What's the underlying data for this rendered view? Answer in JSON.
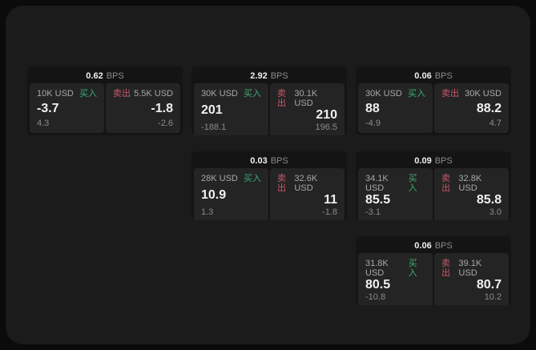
{
  "colors": {
    "page_bg": "#0b0b0b",
    "panel_bg": "#1b1b1b",
    "card_bg": "#141414",
    "tile_bg": "#242424",
    "buy_green": "#3cae73",
    "sell_red": "#c7596a",
    "value_white": "#f0f0f0",
    "muted_gray": "#8b8b8b",
    "label_gray": "#a8a8a8"
  },
  "labels": {
    "bps": "BPS",
    "buy": "买入",
    "sell": "卖出"
  },
  "cards": [
    {
      "bps": "0.62",
      "col": 0,
      "row": 0,
      "buy": {
        "amount": "10K USD",
        "price": "-3.7",
        "delta": "4.3"
      },
      "sell": {
        "amount": "5.5K USD",
        "price": "-1.8",
        "delta": "-2.6"
      }
    },
    {
      "bps": "2.92",
      "col": 1,
      "row": 0,
      "buy": {
        "amount": "30K USD",
        "price": "201",
        "delta": "-188.1"
      },
      "sell": {
        "amount": "30.1K USD",
        "price": "210",
        "delta": "196.5"
      }
    },
    {
      "bps": "0.06",
      "col": 2,
      "row": 0,
      "buy": {
        "amount": "30K USD",
        "price": "88",
        "delta": "-4.9"
      },
      "sell": {
        "amount": "30K USD",
        "price": "88.2",
        "delta": "4.7"
      }
    },
    {
      "bps": "0.03",
      "col": 1,
      "row": 1,
      "buy": {
        "amount": "28K USD",
        "price": "10.9",
        "delta": "1.3"
      },
      "sell": {
        "amount": "32.6K USD",
        "price": "11",
        "delta": "-1.8"
      }
    },
    {
      "bps": "0.09",
      "col": 2,
      "row": 1,
      "buy": {
        "amount": "34.1K USD",
        "price": "85.5",
        "delta": "-3.1"
      },
      "sell": {
        "amount": "32.8K USD",
        "price": "85.8",
        "delta": "3.0"
      }
    },
    {
      "bps": "0.06",
      "col": 2,
      "row": 2,
      "buy": {
        "amount": "31.8K USD",
        "price": "80.5",
        "delta": "-10.8"
      },
      "sell": {
        "amount": "39.1K USD",
        "price": "80.7",
        "delta": "10.2"
      }
    }
  ]
}
